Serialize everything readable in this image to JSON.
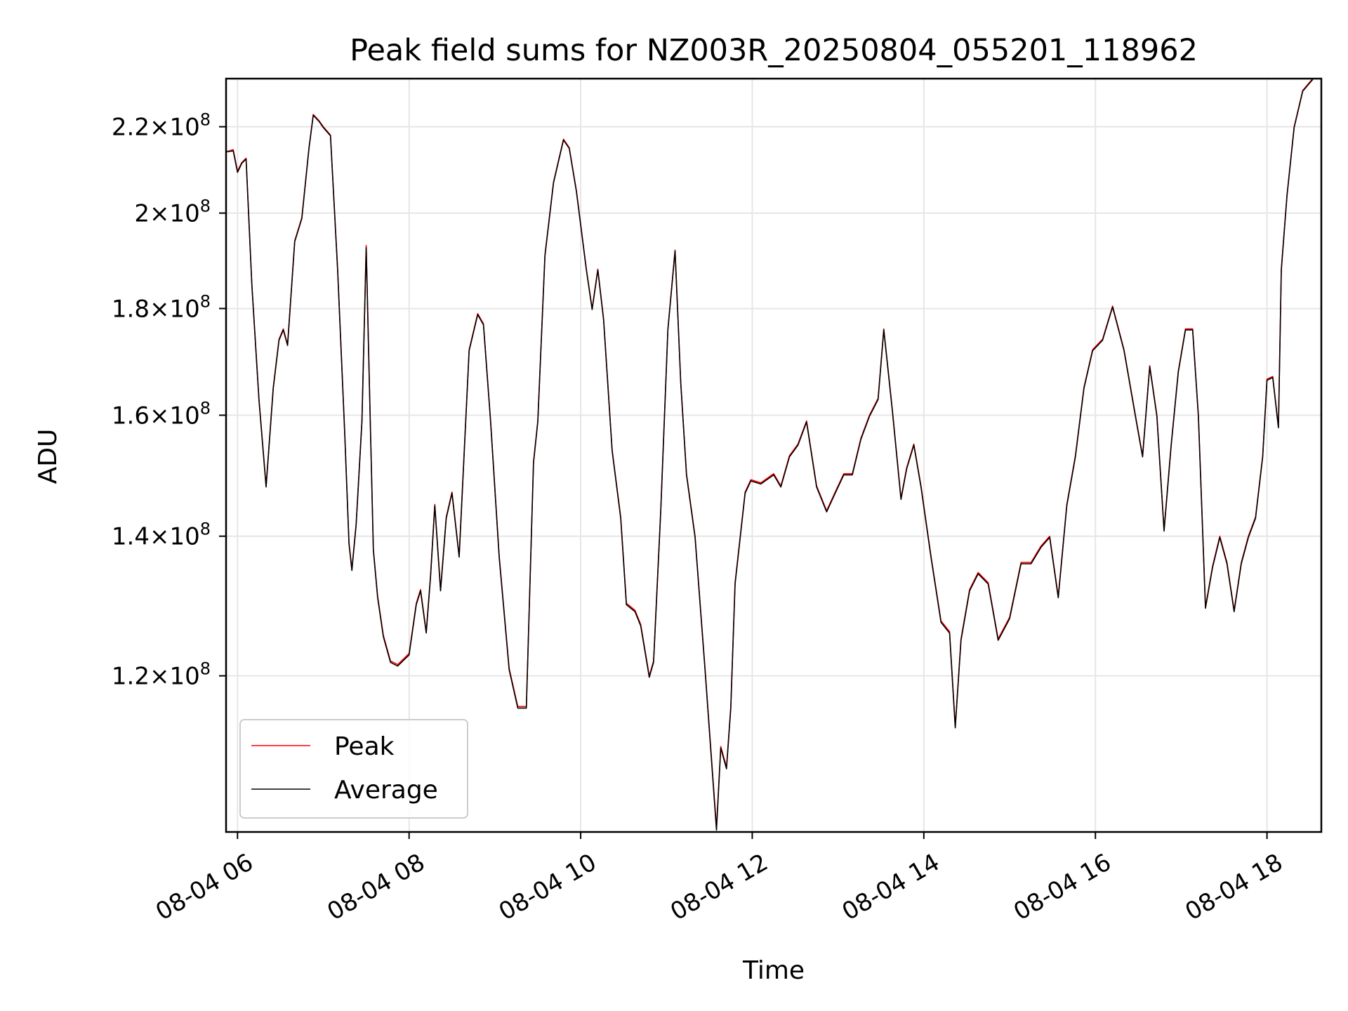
{
  "chart_data": {
    "type": "line",
    "title": "Peak field sums for NZ003R_20250804_055201_118962",
    "xlabel": "Time",
    "ylabel": "ADU",
    "y_scale": "log",
    "xlim": [
      "08-04 05:52",
      "08-04 18:38"
    ],
    "ylim": [
      101000000,
      232000000
    ],
    "grid": true,
    "legend_position": "lower-left",
    "x_ticks": [
      {
        "t": "08-04 06:00",
        "label": "08-04 06"
      },
      {
        "t": "08-04 08:00",
        "label": "08-04 08"
      },
      {
        "t": "08-04 10:00",
        "label": "08-04 10"
      },
      {
        "t": "08-04 12:00",
        "label": "08-04 12"
      },
      {
        "t": "08-04 14:00",
        "label": "08-04 14"
      },
      {
        "t": "08-04 16:00",
        "label": "08-04 16"
      },
      {
        "t": "08-04 18:00",
        "label": "08-04 18"
      }
    ],
    "y_ticks": [
      {
        "value": 120000000,
        "mantissa": "1.2",
        "exponent": "8"
      },
      {
        "value": 140000000,
        "mantissa": "1.4",
        "exponent": "8"
      },
      {
        "value": 160000000,
        "mantissa": "1.6",
        "exponent": "8"
      },
      {
        "value": 180000000,
        "mantissa": "1.8",
        "exponent": "8"
      },
      {
        "value": 200000000,
        "mantissa": "2",
        "exponent": "8"
      },
      {
        "value": 220000000,
        "mantissa": "2.2",
        "exponent": "8"
      }
    ],
    "times": [
      "08-04 05:52",
      "08-04 05:57",
      "08-04 06:00",
      "08-04 06:03",
      "08-04 06:06",
      "08-04 06:10",
      "08-04 06:15",
      "08-04 06:20",
      "08-04 06:25",
      "08-04 06:29",
      "08-04 06:32",
      "08-04 06:35",
      "08-04 06:40",
      "08-04 06:45",
      "08-04 06:50",
      "08-04 06:53",
      "08-04 06:57",
      "08-04 07:00",
      "08-04 07:05",
      "08-04 07:10",
      "08-04 07:15",
      "08-04 07:18",
      "08-04 07:20",
      "08-04 07:23",
      "08-04 07:27",
      "08-04 07:30",
      "08-04 07:32",
      "08-04 07:35",
      "08-04 07:38",
      "08-04 07:42",
      "08-04 07:47",
      "08-04 07:52",
      "08-04 08:00",
      "08-04 08:05",
      "08-04 08:08",
      "08-04 08:12",
      "08-04 08:15",
      "08-04 08:18",
      "08-04 08:22",
      "08-04 08:26",
      "08-04 08:30",
      "08-04 08:35",
      "08-04 08:42",
      "08-04 08:48",
      "08-04 08:52",
      "08-04 08:57",
      "08-04 09:03",
      "08-04 09:10",
      "08-04 09:16",
      "08-04 09:22",
      "08-04 09:27",
      "08-04 09:30",
      "08-04 09:35",
      "08-04 09:41",
      "08-04 09:48",
      "08-04 09:52",
      "08-04 09:57",
      "08-04 10:04",
      "08-04 10:08",
      "08-04 10:12",
      "08-04 10:16",
      "08-04 10:22",
      "08-04 10:28",
      "08-04 10:32",
      "08-04 10:38",
      "08-04 10:42",
      "08-04 10:48",
      "08-04 10:51",
      "08-04 10:56",
      "08-04 11:01",
      "08-04 11:06",
      "08-04 11:10",
      "08-04 11:14",
      "08-04 11:20",
      "08-04 11:27",
      "08-04 11:35",
      "08-04 11:38",
      "08-04 11:42",
      "08-04 11:45",
      "08-04 11:48",
      "08-04 11:55",
      "08-04 11:59",
      "08-04 12:06",
      "08-04 12:15",
      "08-04 12:20",
      "08-04 12:26",
      "08-04 12:32",
      "08-04 12:38",
      "08-04 12:45",
      "08-04 12:52",
      "08-04 12:58",
      "08-04 13:04",
      "08-04 13:10",
      "08-04 13:16",
      "08-04 13:22",
      "08-04 13:28",
      "08-04 13:32",
      "08-04 13:38",
      "08-04 13:44",
      "08-04 13:48",
      "08-04 13:53",
      "08-04 13:58",
      "08-04 14:05",
      "08-04 14:12",
      "08-04 14:18",
      "08-04 14:22",
      "08-04 14:26",
      "08-04 14:32",
      "08-04 14:38",
      "08-04 14:45",
      "08-04 14:52",
      "08-04 15:00",
      "08-04 15:08",
      "08-04 15:15",
      "08-04 15:22",
      "08-04 15:28",
      "08-04 15:34",
      "08-04 15:40",
      "08-04 15:46",
      "08-04 15:52",
      "08-04 15:58",
      "08-04 16:05",
      "08-04 16:12",
      "08-04 16:20",
      "08-04 16:28",
      "08-04 16:33",
      "08-04 16:38",
      "08-04 16:43",
      "08-04 16:48",
      "08-04 16:53",
      "08-04 16:58",
      "08-04 17:03",
      "08-04 17:08",
      "08-04 17:12",
      "08-04 17:17",
      "08-04 17:22",
      "08-04 17:27",
      "08-04 17:32",
      "08-04 17:37",
      "08-04 17:42",
      "08-04 17:47",
      "08-04 17:52",
      "08-04 17:57",
      "08-04 18:00",
      "08-04 18:04",
      "08-04 18:08",
      "08-04 18:10",
      "08-04 18:14",
      "08-04 18:19",
      "08-04 18:25",
      "08-04 18:32",
      "08-04 18:38"
    ],
    "series": [
      {
        "name": "Peak",
        "color": "#ff0000",
        "values": [
          214000000,
          214500000,
          209500000,
          211500000,
          212500000,
          185000000,
          163000000,
          148000000,
          165000000,
          174000000,
          176000000,
          173000000,
          194000000,
          199000000,
          215000000,
          223000000,
          221500000,
          220000000,
          218000000,
          188000000,
          157000000,
          139000000,
          135000000,
          142000000,
          159000000,
          193000000,
          168000000,
          138000000,
          131000000,
          125500000,
          122000000,
          121500000,
          123000000,
          130000000,
          132000000,
          126000000,
          134000000,
          145000000,
          132000000,
          143000000,
          147000000,
          137000000,
          172000000,
          179000000,
          177000000,
          159000000,
          137000000,
          121000000,
          116000000,
          116000000,
          152000000,
          159000000,
          191000000,
          207000000,
          217000000,
          215000000,
          205000000,
          188000000,
          180000000,
          188000000,
          178000000,
          154000000,
          143000000,
          130000000,
          129000000,
          127000000,
          120000000,
          122000000,
          144000000,
          176000000,
          192000000,
          166000000,
          150000000,
          140000000,
          121000000,
          101500000,
          111000000,
          108500000,
          116000000,
          133000000,
          147000000,
          149000000,
          148500000,
          150000000,
          148000000,
          153000000,
          155000000,
          159000000,
          148000000,
          144000000,
          147000000,
          150000000,
          150000000,
          156000000,
          160000000,
          163000000,
          176000000,
          161000000,
          146000000,
          151000000,
          155000000,
          148000000,
          137000000,
          127500000,
          126000000,
          113500000,
          125000000,
          132000000,
          134500000,
          133000000,
          125000000,
          128000000,
          136000000,
          136000000,
          138500000,
          140000000,
          131000000,
          145000000,
          153000000,
          165000000,
          172000000,
          174000000,
          180500000,
          172000000,
          160000000,
          153000000,
          169000000,
          160000000,
          141000000,
          155000000,
          168000000,
          176000000,
          176000000,
          160000000,
          129500000,
          135500000,
          140000000,
          136000000,
          129000000,
          136000000,
          140000000,
          143000000,
          153000000,
          166500000,
          167000000,
          158000000,
          188000000,
          204000000,
          220000000,
          229000000,
          232000000
        ]
      },
      {
        "name": "Average",
        "color": "#000000",
        "values": [
          214000000,
          214200000,
          209200000,
          211300000,
          212300000,
          184800000,
          162800000,
          147800000,
          164800000,
          173800000,
          175800000,
          172800000,
          193800000,
          198800000,
          214800000,
          222800000,
          221300000,
          219800000,
          217800000,
          187800000,
          156800000,
          138800000,
          134800000,
          141800000,
          158800000,
          192500000,
          167800000,
          137800000,
          130800000,
          125300000,
          121800000,
          121300000,
          122800000,
          129800000,
          131800000,
          125800000,
          133800000,
          144800000,
          131800000,
          142800000,
          146800000,
          136800000,
          171800000,
          178800000,
          176800000,
          158800000,
          136800000,
          120800000,
          115800000,
          115800000,
          151800000,
          158800000,
          190800000,
          206800000,
          216800000,
          214800000,
          204800000,
          187800000,
          179800000,
          187800000,
          177800000,
          153800000,
          142800000,
          129800000,
          128800000,
          126800000,
          119800000,
          121800000,
          143800000,
          175800000,
          191800000,
          165800000,
          149800000,
          139800000,
          120800000,
          101200000,
          110800000,
          108300000,
          115800000,
          132800000,
          146800000,
          148800000,
          148300000,
          149800000,
          147800000,
          152800000,
          154800000,
          158800000,
          147800000,
          143800000,
          146800000,
          149800000,
          149800000,
          155800000,
          159800000,
          162800000,
          175800000,
          160800000,
          145800000,
          150800000,
          154800000,
          147800000,
          136800000,
          127300000,
          125800000,
          113300000,
          124800000,
          131800000,
          134300000,
          132800000,
          124800000,
          127800000,
          135800000,
          135800000,
          138300000,
          139800000,
          130800000,
          144800000,
          152800000,
          164800000,
          171800000,
          173800000,
          180300000,
          171800000,
          159800000,
          152800000,
          168800000,
          159800000,
          140800000,
          154800000,
          167800000,
          175800000,
          175800000,
          159800000,
          129300000,
          135300000,
          139800000,
          135800000,
          128800000,
          135800000,
          139800000,
          142800000,
          152800000,
          166300000,
          166800000,
          157800000,
          187800000,
          203800000,
          219800000,
          228800000,
          231800000
        ]
      }
    ]
  }
}
